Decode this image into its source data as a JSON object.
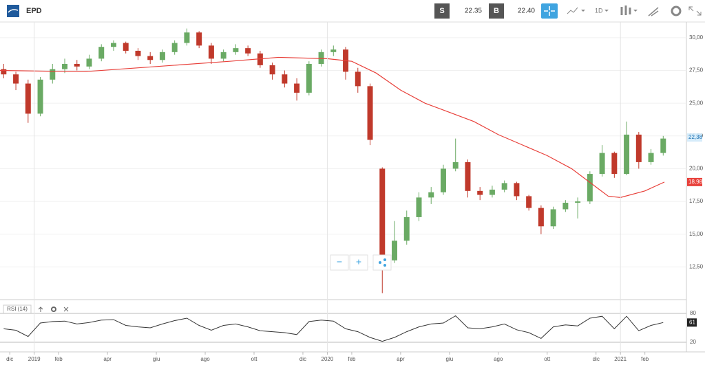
{
  "toolbar": {
    "symbol": "EPD",
    "sell_label": "S",
    "sell_price": "22.35",
    "buy_label": "B",
    "buy_price": "22.40",
    "interval": "1D"
  },
  "zoom": {
    "out": "−",
    "in": "+"
  },
  "chart_data": [
    {
      "type": "candlestick",
      "x": [
        -1.25,
        -0.75,
        -0.25,
        0.25,
        0.75,
        1.25,
        1.75,
        2.25,
        2.75,
        3.25,
        3.75,
        4.25,
        4.75,
        5.25,
        5.75,
        6.25,
        6.75,
        7.25,
        7.75,
        8.25,
        8.75,
        9.25,
        9.75,
        10.25,
        10.75,
        11.25,
        11.75,
        12.25,
        12.75,
        13.25,
        13.75,
        14.25,
        14.75,
        15.25,
        15.75,
        16.25,
        16.75,
        17.25,
        17.75,
        18.25,
        18.75,
        19.25,
        19.75,
        20.25,
        20.75,
        21.25,
        21.75,
        22.25,
        22.75,
        23.25,
        23.75,
        24.25,
        24.75,
        25.25,
        25.75
      ],
      "open": [
        27.6,
        27.2,
        26.5,
        24.2,
        26.8,
        27.6,
        28.0,
        27.8,
        28.4,
        29.3,
        29.6,
        29.0,
        28.6,
        28.3,
        28.9,
        29.6,
        30.4,
        29.4,
        28.4,
        28.9,
        29.2,
        28.8,
        27.9,
        27.2,
        26.5,
        25.8,
        28.0,
        28.9,
        29.1,
        27.4,
        26.3,
        20.0,
        13.0,
        14.5,
        16.3,
        17.8,
        18.2,
        20.0,
        20.5,
        18.3,
        18.0,
        18.4,
        18.9,
        17.9,
        17.0,
        15.6,
        16.9,
        17.4,
        17.5,
        19.6,
        21.2,
        19.6,
        22.6,
        20.5,
        21.2
      ],
      "high": [
        28.0,
        27.4,
        26.8,
        27.0,
        28.0,
        28.4,
        28.3,
        28.7,
        29.5,
        29.8,
        29.7,
        29.2,
        28.9,
        29.1,
        29.8,
        30.7,
        30.5,
        29.6,
        29.1,
        29.5,
        29.4,
        29.0,
        28.1,
        27.5,
        26.9,
        28.2,
        29.1,
        29.4,
        29.3,
        27.7,
        26.5,
        20.1,
        16.0,
        16.8,
        18.2,
        18.6,
        20.3,
        22.3,
        20.7,
        18.6,
        18.7,
        19.1,
        19.0,
        18.0,
        17.2,
        17.1,
        17.6,
        17.8,
        19.8,
        21.8,
        21.3,
        23.6,
        22.8,
        21.5,
        22.5
      ],
      "low": [
        26.9,
        26.0,
        23.5,
        24.0,
        26.5,
        27.3,
        27.5,
        27.6,
        28.2,
        29.0,
        28.8,
        28.3,
        28.0,
        28.1,
        28.7,
        29.4,
        29.2,
        28.0,
        28.2,
        28.7,
        28.6,
        27.7,
        26.8,
        26.2,
        25.2,
        25.6,
        27.8,
        28.6,
        26.8,
        25.8,
        21.8,
        10.5,
        12.8,
        14.2,
        16.0,
        17.3,
        18.0,
        19.8,
        17.8,
        17.6,
        17.8,
        18.2,
        17.6,
        16.8,
        15.0,
        15.4,
        16.7,
        16.2,
        17.3,
        19.4,
        19.3,
        19.5,
        20.0,
        20.3,
        21.0
      ],
      "close": [
        27.2,
        26.5,
        24.2,
        26.8,
        27.6,
        28.0,
        27.8,
        28.4,
        29.3,
        29.6,
        29.0,
        28.6,
        28.3,
        28.9,
        29.6,
        30.4,
        29.4,
        28.4,
        28.9,
        29.2,
        28.8,
        27.9,
        27.2,
        26.5,
        25.8,
        28.0,
        28.9,
        29.1,
        27.4,
        26.3,
        22.2,
        13.0,
        14.5,
        16.3,
        17.8,
        18.2,
        20.0,
        20.5,
        18.3,
        18.0,
        18.4,
        18.9,
        17.9,
        17.0,
        15.6,
        16.9,
        17.4,
        17.5,
        19.6,
        21.2,
        19.6,
        22.6,
        20.5,
        21.2,
        22.3
      ],
      "up_color": "#6aaa64",
      "down_color": "#c0392b",
      "ma": {
        "color": "#e8403a",
        "x": [
          -1.4,
          2,
          5,
          8,
          10,
          12,
          13,
          14,
          15,
          16,
          17,
          18,
          19,
          20,
          21,
          22,
          23,
          23.5,
          24,
          25,
          25.8
        ],
        "values": [
          27.5,
          27.4,
          27.8,
          28.2,
          28.5,
          28.4,
          28.2,
          27.3,
          26.0,
          25.0,
          24.3,
          23.6,
          22.6,
          21.8,
          21.0,
          20.0,
          18.6,
          17.9,
          17.8,
          18.3,
          18.98
        ],
        "value_label": "18,98"
      },
      "last_price": {
        "value": 22.38,
        "label": "22,38"
      },
      "xlim": [
        -1.4,
        26.7
      ],
      "ylim": [
        10,
        31.2
      ],
      "yticks": [
        {
          "value": 12.5,
          "label": "12,50"
        },
        {
          "value": 15,
          "label": "15,00"
        },
        {
          "value": 17.5,
          "label": "17,50"
        },
        {
          "value": 20,
          "label": "20,00"
        },
        {
          "value": 22.5,
          "label": "22,50"
        },
        {
          "value": 25,
          "label": "25,00"
        },
        {
          "value": 27.5,
          "label": "27,50"
        },
        {
          "value": 30,
          "label": "30,00"
        }
      ],
      "grid": true
    },
    {
      "type": "line",
      "title": "RSI (14)",
      "color": "#333333",
      "x": [
        -1.25,
        -0.75,
        -0.25,
        0.25,
        0.75,
        1.25,
        1.75,
        2.25,
        2.75,
        3.25,
        3.75,
        4.25,
        4.75,
        5.25,
        5.75,
        6.25,
        6.75,
        7.25,
        7.75,
        8.25,
        8.75,
        9.25,
        9.75,
        10.25,
        10.75,
        11.25,
        11.75,
        12.25,
        12.75,
        13.25,
        13.75,
        14.25,
        14.75,
        15.25,
        15.75,
        16.25,
        16.75,
        17.25,
        17.75,
        18.25,
        18.75,
        19.25,
        19.75,
        20.25,
        20.75,
        21.25,
        21.75,
        22.25,
        22.75,
        23.25,
        23.75,
        24.25,
        24.75,
        25.25,
        25.75
      ],
      "values": [
        48,
        45,
        32,
        60,
        63,
        64,
        58,
        61,
        66,
        67,
        55,
        52,
        50,
        58,
        65,
        70,
        55,
        45,
        55,
        58,
        52,
        44,
        42,
        40,
        36,
        63,
        66,
        64,
        48,
        42,
        30,
        22,
        30,
        42,
        52,
        58,
        60,
        75,
        50,
        48,
        52,
        58,
        46,
        40,
        28,
        52,
        56,
        54,
        70,
        74,
        48,
        74,
        44,
        55,
        61
      ],
      "xlim": [
        -1.4,
        26.7
      ],
      "ylim": [
        0,
        100
      ],
      "yticks": [
        20,
        80
      ],
      "xticks": [
        {
          "value": -1,
          "label": "dic"
        },
        {
          "value": 0,
          "label": "2019"
        },
        {
          "value": 1,
          "label": "feb"
        },
        {
          "value": 3,
          "label": "apr"
        },
        {
          "value": 5,
          "label": "giu"
        },
        {
          "value": 7,
          "label": "ago"
        },
        {
          "value": 9,
          "label": "ott"
        },
        {
          "value": 11,
          "label": "dic"
        },
        {
          "value": 12,
          "label": "2020"
        },
        {
          "value": 13,
          "label": "feb"
        },
        {
          "value": 15,
          "label": "apr"
        },
        {
          "value": 17,
          "label": "giu"
        },
        {
          "value": 19,
          "label": "ago"
        },
        {
          "value": 21,
          "label": "ott"
        },
        {
          "value": 23,
          "label": "dic"
        },
        {
          "value": 24,
          "label": "2021"
        },
        {
          "value": 25,
          "label": "feb"
        }
      ]
    }
  ]
}
